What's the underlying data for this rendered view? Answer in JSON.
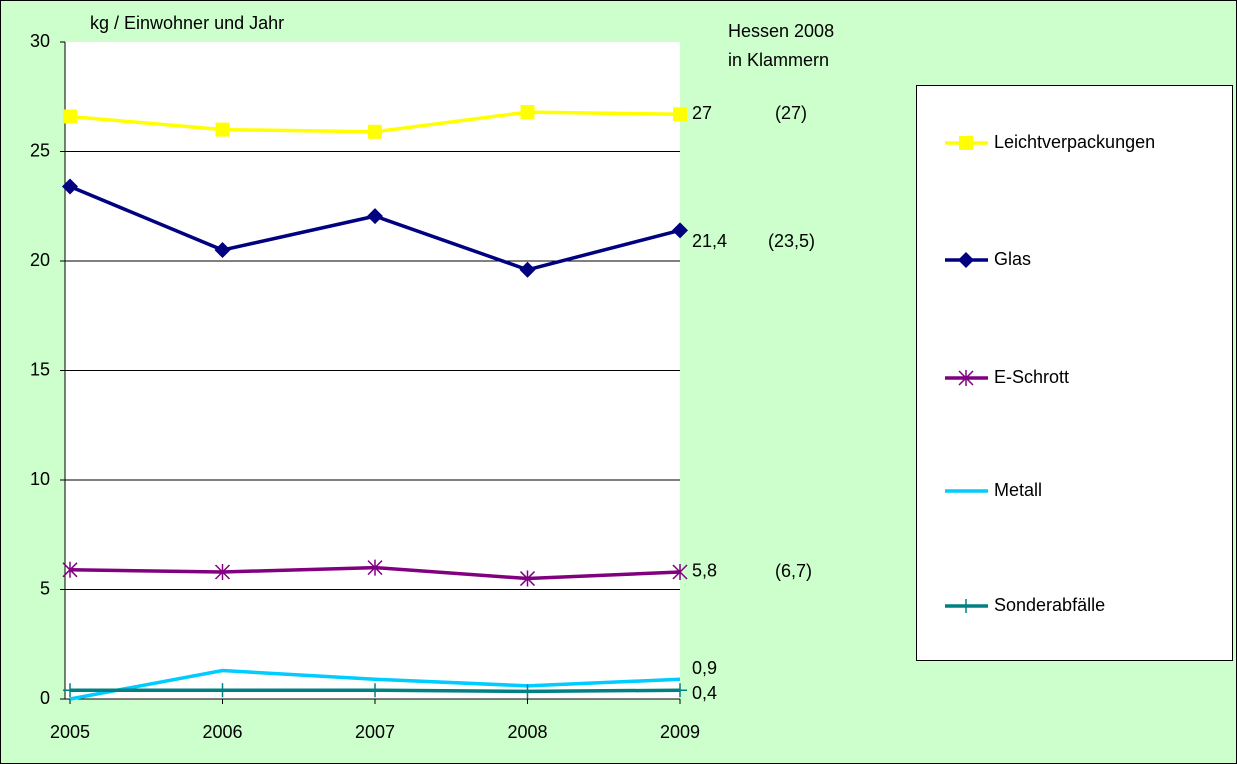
{
  "chart_data": {
    "type": "line",
    "y_axis_label": "kg / Einwohner und Jahr",
    "annotations": [
      "Hessen 2008",
      "in Klammern",
      "(27)",
      "(23,5)",
      "(6,7)"
    ],
    "categories": [
      "2005",
      "2006",
      "2007",
      "2008",
      "2009"
    ],
    "ylim": [
      0,
      30
    ],
    "yticks": [
      0,
      5,
      10,
      15,
      20,
      25,
      30
    ],
    "grid": true,
    "legend": "right",
    "series": [
      {
        "name": "Leichtverpackungen",
        "color": "#ffff00",
        "marker": "square",
        "values": [
          26.6,
          26.0,
          25.9,
          26.8,
          26.7
        ],
        "value_labels": [
          null,
          null,
          null,
          null,
          "27"
        ]
      },
      {
        "name": "Glas",
        "color": "#000080",
        "marker": "diamond",
        "values": [
          23.4,
          20.5,
          22.05,
          19.6,
          21.4
        ],
        "value_labels": [
          null,
          null,
          null,
          null,
          "21,4"
        ]
      },
      {
        "name": "E-Schrott",
        "color": "#800080",
        "marker": "asterisk",
        "values": [
          5.9,
          5.8,
          6.0,
          5.5,
          5.8
        ],
        "value_labels": [
          null,
          null,
          null,
          null,
          "5,8"
        ]
      },
      {
        "name": "Metall",
        "color": "#00ccff",
        "marker": "none",
        "values": [
          0.0,
          1.3,
          0.9,
          0.6,
          0.9
        ],
        "value_labels": [
          null,
          null,
          null,
          null,
          "0,9"
        ]
      },
      {
        "name": "Sonderabfälle",
        "color": "#008080",
        "marker": "plus",
        "values": [
          0.4,
          0.4,
          0.4,
          0.35,
          0.4
        ],
        "value_labels": [
          null,
          null,
          null,
          null,
          "0,4"
        ]
      }
    ]
  }
}
